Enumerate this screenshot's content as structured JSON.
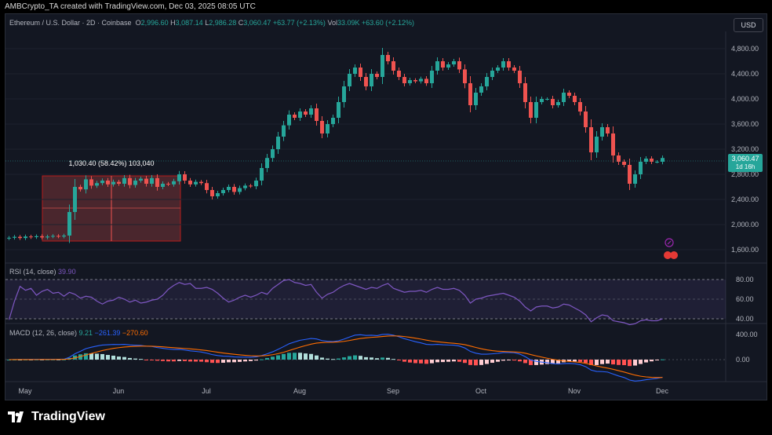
{
  "header": {
    "credit": "AMBCrypto_TA created with TradingView.com, Dec 03, 2025 08:05 UTC"
  },
  "legend": {
    "symbol": "Ethereum / U.S. Dollar · 2D · Coinbase",
    "o_label": "O",
    "o": "2,996.60",
    "h_label": "H",
    "h": "3,087.14",
    "l_label": "L",
    "l": "2,986.28",
    "c_label": "C",
    "c": "3,060.47",
    "change": "+63.77 (+2.13%)",
    "vol_label": "Vol",
    "vol": "33.09K",
    "vol_change": "+63.60 (+2.12%)"
  },
  "currency_button": "USD",
  "price_tag": {
    "price": "3,060.47",
    "countdown": "1d 16h"
  },
  "measure_label": "1,030.40 (58.42%) 103,040",
  "rsi": {
    "label": "RSI (14, close)",
    "value": "39.90",
    "ticks": [
      "80.00",
      "60.00",
      "40.00"
    ]
  },
  "macd": {
    "label": "MACD (12, 26, close)",
    "v1": "9.21",
    "v2": "−261.39",
    "v3": "−270.60",
    "ticks": [
      "400.00",
      "0.00"
    ]
  },
  "x_labels": [
    "May",
    "Jun",
    "Jul",
    "Aug",
    "Sep",
    "Oct",
    "Nov",
    "Dec"
  ],
  "brand": "TradingView",
  "colors": {
    "up": "#26a69a",
    "down": "#ef5350",
    "rsi_line": "#7e57c2",
    "macd_line": "#2962ff",
    "signal_line": "#ff6d00",
    "background": "#131722"
  },
  "chart_data": {
    "type": "candlestick",
    "title": "Ethereum / U.S. Dollar · 2D · Coinbase",
    "ylim": [
      1450,
      5050
    ],
    "y_ticks": [
      4800,
      4400,
      4000,
      3600,
      3200,
      2800,
      2400,
      2000,
      1600
    ],
    "closes": [
      1790,
      1805,
      1785,
      1810,
      1800,
      1815,
      1795,
      1810,
      1820,
      1810,
      1825,
      2200,
      2600,
      2560,
      2720,
      2620,
      2660,
      2700,
      2640,
      2680,
      2650,
      2740,
      2630,
      2700,
      2730,
      2650,
      2740,
      2600,
      2650,
      2640,
      2690,
      2800,
      2700,
      2640,
      2680,
      2660,
      2550,
      2450,
      2500,
      2550,
      2600,
      2520,
      2580,
      2620,
      2610,
      2700,
      2900,
      3060,
      3200,
      3400,
      3580,
      3750,
      3700,
      3800,
      3750,
      3850,
      3650,
      3450,
      3600,
      3700,
      3950,
      4200,
      4400,
      4500,
      4350,
      4200,
      4400,
      4350,
      4700,
      4600,
      4450,
      4350,
      4250,
      4300,
      4280,
      4320,
      4250,
      4450,
      4600,
      4500,
      4550,
      4600,
      4470,
      4250,
      3900,
      4100,
      4200,
      4350,
      4450,
      4500,
      4600,
      4500,
      4450,
      4250,
      3950,
      3700,
      3950,
      4000,
      4000,
      3900,
      3950,
      4100,
      4050,
      3950,
      3800,
      3550,
      3150,
      3400,
      3550,
      3450,
      3100,
      3000,
      2950,
      2650,
      2800,
      3000,
      3050,
      3000,
      3000,
      3060
    ],
    "rsi": [
      39,
      58,
      73,
      69,
      71,
      64,
      68,
      70,
      66,
      67,
      63,
      67,
      65,
      61,
      63,
      62,
      58,
      55,
      58,
      59,
      62,
      60,
      57,
      59,
      56,
      57,
      59,
      60,
      64,
      70,
      74,
      77,
      75,
      76,
      71,
      71,
      72,
      70,
      66,
      61,
      57,
      59,
      62,
      64,
      62,
      64,
      67,
      65,
      71,
      75,
      79,
      80,
      77,
      76,
      74,
      75,
      67,
      61,
      65,
      67,
      71,
      74,
      76,
      74,
      72,
      70,
      72,
      71,
      74,
      76,
      71,
      69,
      67,
      68,
      68,
      69,
      67,
      70,
      72,
      70,
      70,
      71,
      69,
      64,
      56,
      60,
      61,
      63,
      64,
      65,
      66,
      64,
      62,
      58,
      52,
      48,
      52,
      53,
      53,
      51,
      52,
      55,
      54,
      51,
      48,
      44,
      37,
      41,
      44,
      43,
      38,
      37,
      36,
      34,
      35,
      38,
      39,
      38,
      38,
      40
    ],
    "macd_value": 9.21,
    "macd_signal": -270.6,
    "macd_hist": -261.39,
    "measure": {
      "change": 1030.4,
      "percent": 58.42,
      "ticks": 103040
    }
  }
}
